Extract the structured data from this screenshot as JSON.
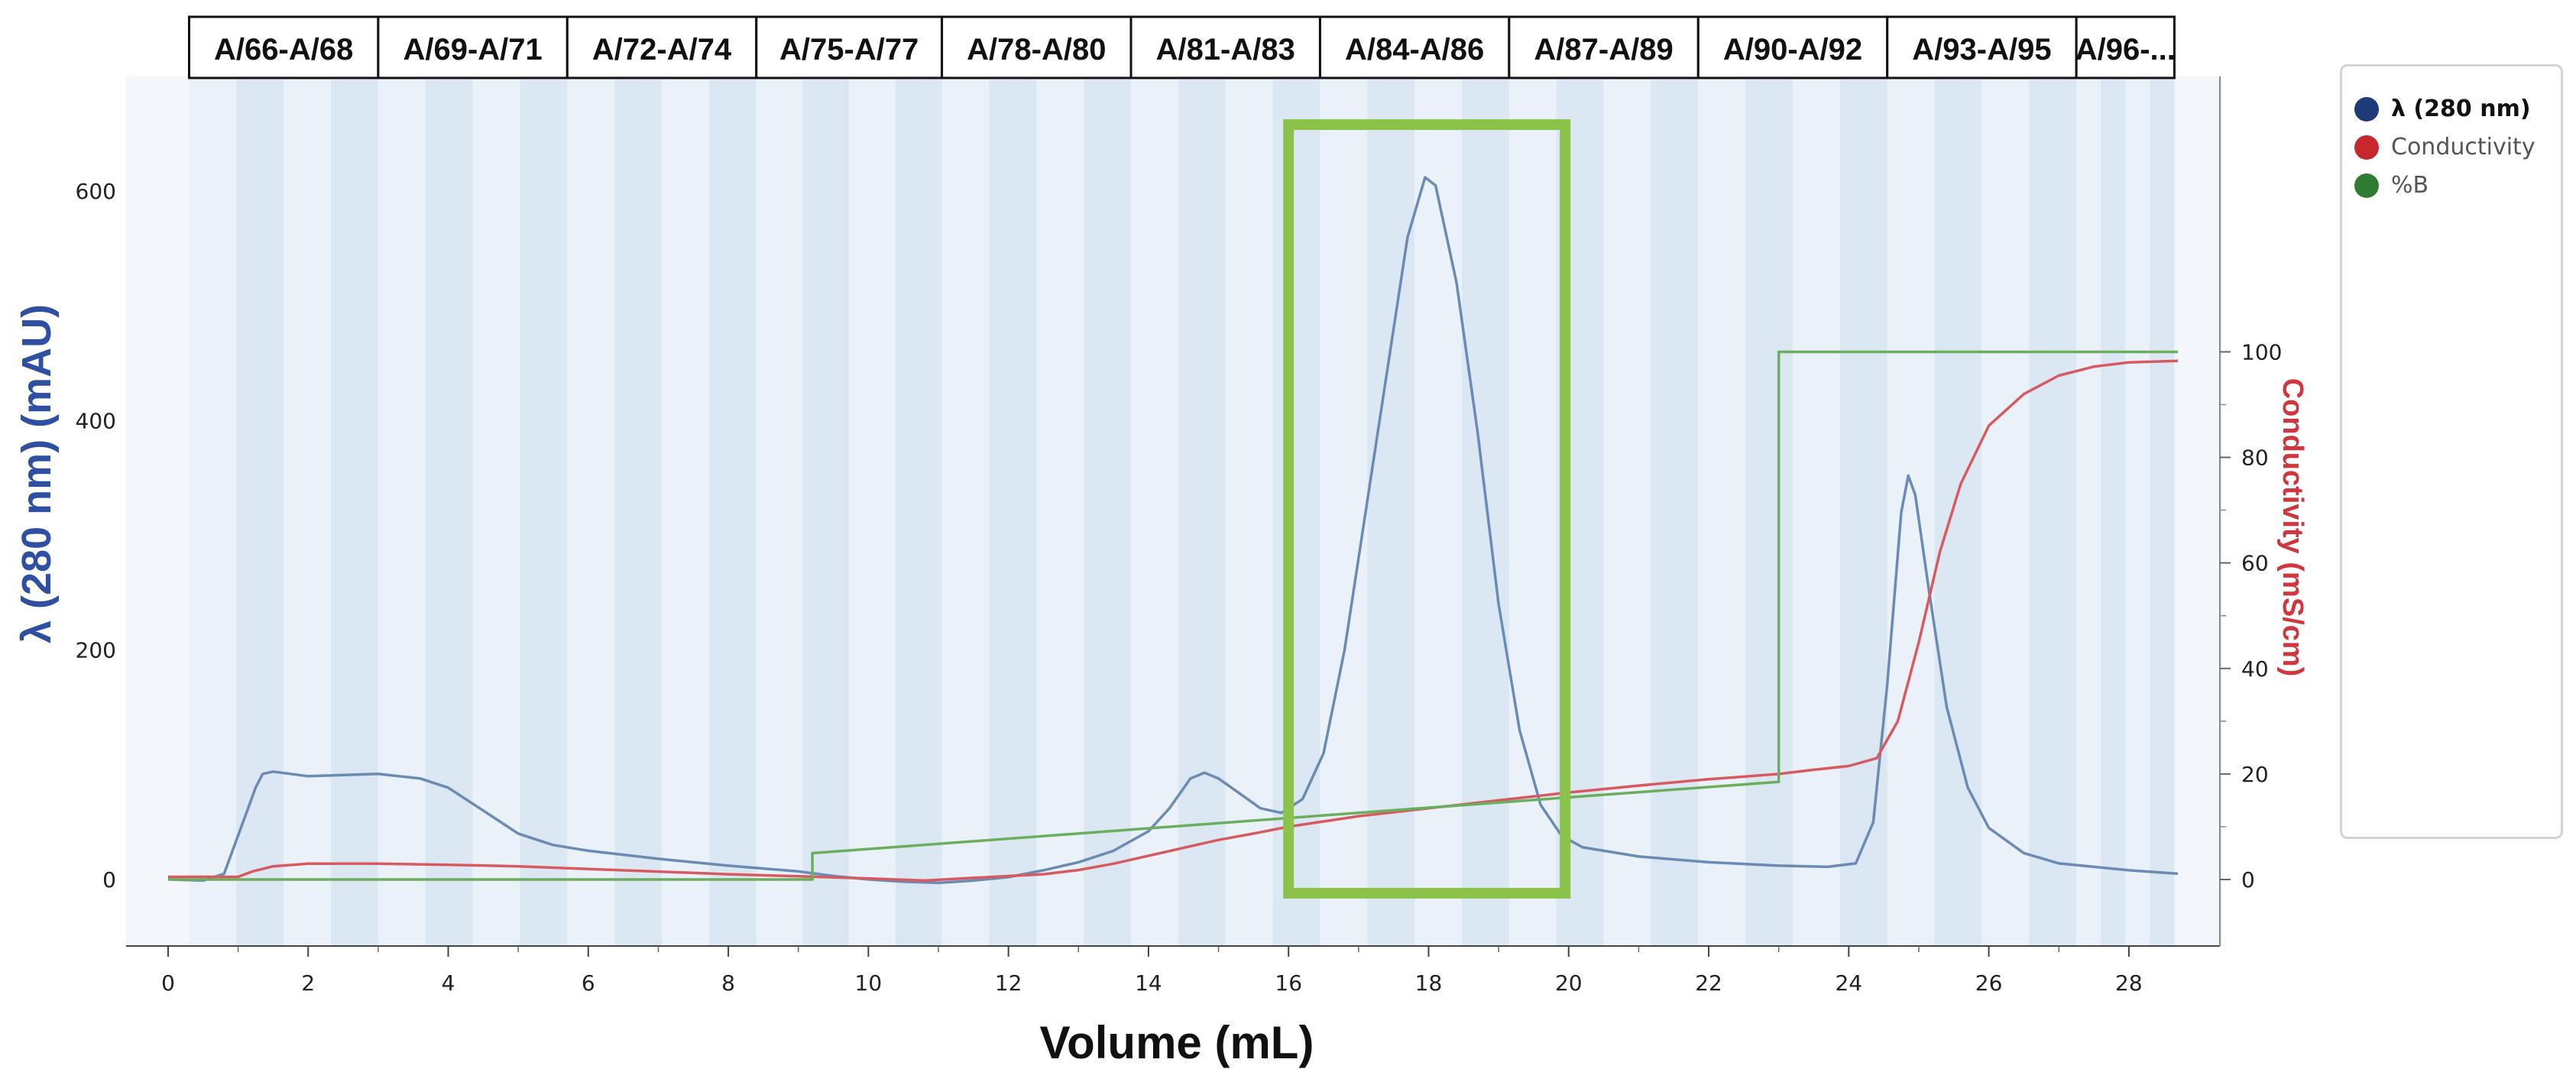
{
  "chart_data": {
    "type": "line",
    "xlabel": "Volume (mL)",
    "ylabel_left": "λ (280 nm) (mAU)",
    "ylabel_right": "Conductivity (mS/cm)",
    "xlim": [
      -0.6,
      29.3
    ],
    "ylim_left": [
      -58,
      700
    ],
    "ylim_right": [
      -12.6,
      152.2
    ],
    "x_ticks": [
      0,
      2,
      4,
      6,
      8,
      10,
      12,
      14,
      16,
      18,
      20,
      22,
      24,
      26,
      28
    ],
    "y_left_ticks": [
      0,
      200,
      400,
      600
    ],
    "y_right_ticks": [
      0,
      20,
      40,
      60,
      80,
      100
    ],
    "fractions": [
      {
        "label": "A/66-A/68",
        "start": 0.3,
        "end": 3.0
      },
      {
        "label": "A/69-A/71",
        "start": 3.0,
        "end": 5.7
      },
      {
        "label": "A/72-A/74",
        "start": 5.7,
        "end": 8.4
      },
      {
        "label": "A/75-A/77",
        "start": 8.4,
        "end": 11.05
      },
      {
        "label": "A/78-A/80",
        "start": 11.05,
        "end": 13.75
      },
      {
        "label": "A/81-A/83",
        "start": 13.75,
        "end": 16.45
      },
      {
        "label": "A/84-A/86",
        "start": 16.45,
        "end": 19.15
      },
      {
        "label": "A/87-A/89",
        "start": 19.15,
        "end": 21.85
      },
      {
        "label": "A/90-A/92",
        "start": 21.85,
        "end": 24.55
      },
      {
        "label": "A/93-A/95",
        "start": 24.55,
        "end": 27.25
      },
      {
        "label": "A/96-...",
        "start": 27.25,
        "end": 28.65
      }
    ],
    "highlight": {
      "x_start": 16.0,
      "x_end": 19.95,
      "y_bottom_mAU": -12,
      "y_top_mAU": 658
    },
    "series": [
      {
        "name": "λ (280 nm)",
        "axis": "left",
        "color": "#6b8bb5",
        "points": [
          [
            0,
            0
          ],
          [
            0.5,
            -1
          ],
          [
            0.8,
            5
          ],
          [
            0.95,
            30
          ],
          [
            1.1,
            55
          ],
          [
            1.25,
            80
          ],
          [
            1.35,
            92
          ],
          [
            1.5,
            94
          ],
          [
            2,
            90
          ],
          [
            3,
            92
          ],
          [
            3.6,
            88
          ],
          [
            4,
            80
          ],
          [
            4.5,
            60
          ],
          [
            5,
            40
          ],
          [
            5.5,
            30
          ],
          [
            6,
            25
          ],
          [
            7,
            18
          ],
          [
            8,
            12
          ],
          [
            9,
            7
          ],
          [
            9.5,
            3
          ],
          [
            10,
            0
          ],
          [
            10.5,
            -2
          ],
          [
            11,
            -3
          ],
          [
            11.5,
            -1
          ],
          [
            12,
            2
          ],
          [
            12.5,
            8
          ],
          [
            13,
            15
          ],
          [
            13.5,
            25
          ],
          [
            14,
            42
          ],
          [
            14.3,
            62
          ],
          [
            14.6,
            88
          ],
          [
            14.8,
            93
          ],
          [
            15,
            88
          ],
          [
            15.3,
            75
          ],
          [
            15.6,
            62
          ],
          [
            15.9,
            58
          ],
          [
            16.2,
            70
          ],
          [
            16.5,
            110
          ],
          [
            16.8,
            200
          ],
          [
            17.1,
            320
          ],
          [
            17.4,
            440
          ],
          [
            17.7,
            560
          ],
          [
            17.95,
            612
          ],
          [
            18.1,
            605
          ],
          [
            18.4,
            520
          ],
          [
            18.7,
            390
          ],
          [
            19,
            240
          ],
          [
            19.3,
            130
          ],
          [
            19.6,
            65
          ],
          [
            19.9,
            38
          ],
          [
            20.2,
            28
          ],
          [
            21,
            20
          ],
          [
            22,
            15
          ],
          [
            23,
            12
          ],
          [
            23.7,
            11
          ],
          [
            24.1,
            14
          ],
          [
            24.35,
            50
          ],
          [
            24.55,
            170
          ],
          [
            24.75,
            320
          ],
          [
            24.85,
            352
          ],
          [
            24.95,
            335
          ],
          [
            25.15,
            250
          ],
          [
            25.4,
            150
          ],
          [
            25.7,
            80
          ],
          [
            26,
            45
          ],
          [
            26.5,
            23
          ],
          [
            27,
            14
          ],
          [
            28,
            8
          ],
          [
            28.7,
            5
          ]
        ]
      },
      {
        "name": "Conductivity",
        "axis": "right",
        "color": "#d65a5f",
        "points": [
          [
            0,
            0.5
          ],
          [
            1,
            0.5
          ],
          [
            1.2,
            1.5
          ],
          [
            1.5,
            2.5
          ],
          [
            2,
            3
          ],
          [
            3,
            3
          ],
          [
            4,
            2.8
          ],
          [
            5,
            2.5
          ],
          [
            6,
            2
          ],
          [
            7,
            1.5
          ],
          [
            8,
            1
          ],
          [
            9,
            0.6
          ],
          [
            10,
            0.2
          ],
          [
            10.8,
            -0.2
          ],
          [
            11.5,
            0.3
          ],
          [
            12.5,
            1
          ],
          [
            13,
            1.8
          ],
          [
            13.5,
            3
          ],
          [
            14,
            4.5
          ],
          [
            14.5,
            6
          ],
          [
            15,
            7.5
          ],
          [
            15.5,
            8.7
          ],
          [
            16,
            10
          ],
          [
            17,
            12
          ],
          [
            18,
            13.5
          ],
          [
            19,
            15
          ],
          [
            20,
            16.5
          ],
          [
            21,
            17.8
          ],
          [
            22,
            19
          ],
          [
            23,
            20
          ],
          [
            23.5,
            20.8
          ],
          [
            24,
            21.5
          ],
          [
            24.4,
            23
          ],
          [
            24.7,
            30
          ],
          [
            25,
            45
          ],
          [
            25.3,
            62
          ],
          [
            25.6,
            75
          ],
          [
            26,
            86
          ],
          [
            26.5,
            92
          ],
          [
            27,
            95.5
          ],
          [
            27.5,
            97.2
          ],
          [
            28,
            98
          ],
          [
            28.7,
            98.3
          ]
        ]
      },
      {
        "name": "%B",
        "axis": "right",
        "color": "#6aae5e",
        "points": [
          [
            0,
            0
          ],
          [
            9.2,
            0
          ],
          [
            9.2,
            5
          ],
          [
            23,
            18.5
          ],
          [
            23,
            100
          ],
          [
            28.7,
            100
          ]
        ]
      }
    ]
  },
  "legend": [
    {
      "label": "λ (280 nm)",
      "color": "#1f3a78"
    },
    {
      "label": "Conductivity",
      "color": "#c7282e"
    },
    {
      "label": "%B",
      "color": "#2e7d32"
    }
  ]
}
